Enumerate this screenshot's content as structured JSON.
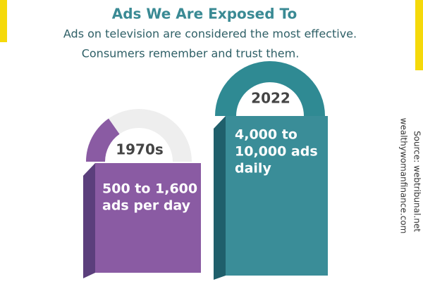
{
  "header": {
    "title": "Ads We Are Exposed To",
    "subtitle": [
      "Ads on television are considered the most effective.",
      "Consumers remember and trust them."
    ]
  },
  "blocks": [
    {
      "year": "1970s",
      "text": [
        "500 to 1,600",
        "ads per day"
      ]
    },
    {
      "year": "2022",
      "text": [
        "4,000 to",
        "10,000 ads",
        "daily"
      ]
    }
  ],
  "credits": [
    "wealthywomanfinance.com",
    "Source: webtribunal.net"
  ]
}
